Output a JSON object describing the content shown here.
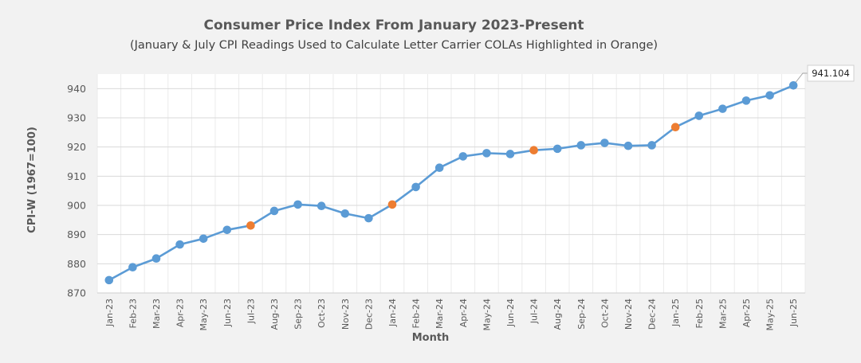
{
  "chart_data": {
    "type": "line",
    "title": "Consumer Price Index From January 2023-Present",
    "subtitle": "(January & July CPI Readings Used to Calculate Letter Carrier COLAs Highlighted in Orange)",
    "xlabel": "Month",
    "ylabel": "CPI-W (1967=100)",
    "ylim": [
      870,
      945
    ],
    "yticks": [
      870,
      880,
      890,
      900,
      910,
      920,
      930,
      940
    ],
    "grid": true,
    "categories": [
      "Jan-23",
      "Feb-23",
      "Mar-23",
      "Apr-23",
      "May-23",
      "Jun-23",
      "Jul-23",
      "Aug-23",
      "Sep-23",
      "Oct-23",
      "Nov-23",
      "Dec-23",
      "Jan-24",
      "Feb-24",
      "Mar-24",
      "Apr-24",
      "May-24",
      "Jun-24",
      "Jul-24",
      "Aug-24",
      "Sep-24",
      "Oct-24",
      "Nov-24",
      "Dec-24",
      "Jan-25",
      "Feb-25",
      "Mar-25",
      "Apr-25",
      "May-25",
      "Jun-25"
    ],
    "series": [
      {
        "values": [
          874.4,
          878.8,
          881.8,
          886.6,
          888.6,
          891.6,
          893.1,
          898.1,
          900.3,
          899.8,
          897.2,
          895.6,
          900.3,
          906.3,
          912.9,
          916.8,
          917.9,
          917.6,
          918.9,
          919.4,
          920.6,
          921.4,
          920.4,
          920.6,
          926.8,
          930.7,
          933.1,
          935.9,
          937.7,
          941.104
        ],
        "color": "#5b9bd5"
      }
    ],
    "highlight_color": "#ed7d31",
    "highlight_indices": [
      6,
      12,
      18,
      24
    ],
    "data_label": {
      "index": 29,
      "text": "941.104"
    }
  }
}
